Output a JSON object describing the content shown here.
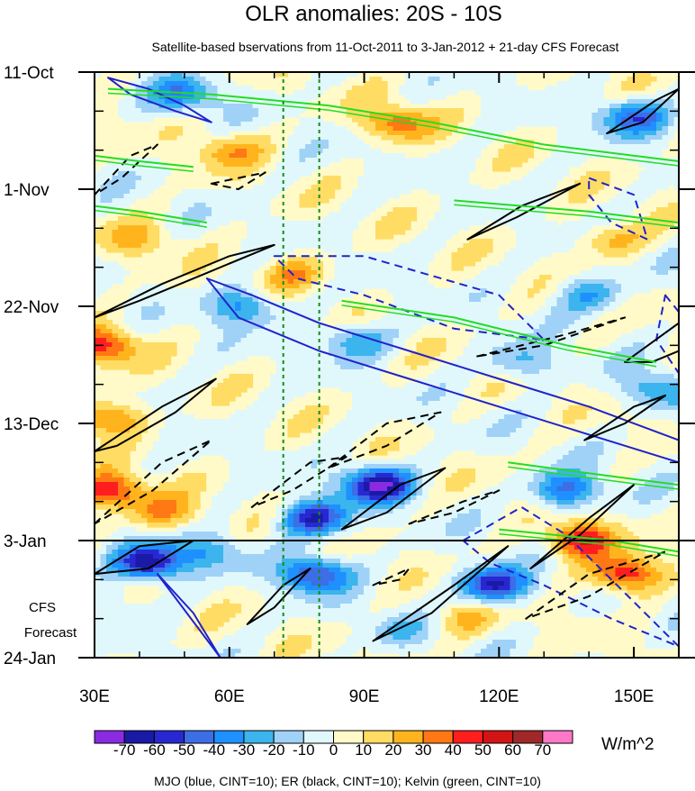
{
  "chart_data": {
    "type": "heatmap",
    "title": "OLR anomalies: 20S - 10S",
    "subtitle": "Satellite-based bservations from 11-Oct-2011 to 3-Jan-2012 + 21-day CFS Forecast",
    "x_axis": {
      "range": [
        30,
        160
      ],
      "ticks": [
        {
          "value": 30,
          "label": "30E"
        },
        {
          "value": 60,
          "label": "60E"
        },
        {
          "value": 90,
          "label": "90E"
        },
        {
          "value": 120,
          "label": "120E"
        },
        {
          "value": 150,
          "label": "150E"
        }
      ]
    },
    "y_axis": {
      "range_days": [
        0,
        105
      ],
      "direction": "time increases downward",
      "ticks": [
        {
          "day": 0,
          "label": "11-Oct"
        },
        {
          "day": 21,
          "label": "1-Nov"
        },
        {
          "day": 42,
          "label": "22-Nov"
        },
        {
          "day": 63,
          "label": "13-Dec"
        },
        {
          "day": 84,
          "label": "3-Jan"
        },
        {
          "day": 105,
          "label": "24-Jan"
        }
      ]
    },
    "forecast_divider_day": 84,
    "forecast_label": [
      "CFS",
      "Forecast"
    ],
    "reference_longitudes": [
      72,
      80
    ],
    "colorbar": {
      "unit": "W/m^2",
      "levels": [
        -70,
        -60,
        -50,
        -40,
        -30,
        -20,
        -10,
        0,
        10,
        20,
        30,
        40,
        50,
        60,
        70
      ],
      "level_labels": [
        "-70",
        "-60",
        "-50",
        "-40",
        "-30",
        "-20",
        "-10",
        "0",
        "10",
        "20",
        "30",
        "40",
        "50",
        "60",
        "70"
      ],
      "colors": [
        "#8a2be2",
        "#1a1aa6",
        "#2828d2",
        "#3c6ee6",
        "#1e90ff",
        "#3cb4ee",
        "#a0d2f8",
        "#e0f8fc",
        "#fffac8",
        "#ffdc64",
        "#ffb41e",
        "#ff7814",
        "#ff1e1e",
        "#d21414",
        "#a02828",
        "#ff78c8"
      ]
    },
    "contour_legend": "MJO (blue, CINT=10); ER (black, CINT=10); Kelvin (green, CINT=10)",
    "field_features": [
      {
        "day": 9,
        "lon": 97,
        "value": 35
      },
      {
        "day": 14,
        "lon": 60,
        "value": 25
      },
      {
        "day": 30,
        "lon": 40,
        "value": 20
      },
      {
        "day": 36,
        "lon": 75,
        "value": 25
      },
      {
        "day": 30,
        "lon": 145,
        "value": 25
      },
      {
        "day": 4,
        "lon": 50,
        "value": -35
      },
      {
        "day": 8,
        "lon": 150,
        "value": -45
      },
      {
        "day": 40,
        "lon": 140,
        "value": -30
      },
      {
        "day": 42,
        "lon": 63,
        "value": -35
      },
      {
        "day": 48,
        "lon": 88,
        "value": -30
      },
      {
        "day": 52,
        "lon": 125,
        "value": -25
      },
      {
        "day": 57,
        "lon": 155,
        "value": -30
      },
      {
        "day": 49,
        "lon": 32,
        "value": 45
      },
      {
        "day": 62,
        "lon": 33,
        "value": 40
      },
      {
        "day": 75,
        "lon": 33,
        "value": 50
      },
      {
        "day": 79,
        "lon": 45,
        "value": 30
      },
      {
        "day": 74,
        "lon": 93,
        "value": -70
      },
      {
        "day": 80,
        "lon": 79,
        "value": -60
      },
      {
        "day": 75,
        "lon": 135,
        "value": -45
      },
      {
        "day": 86,
        "lon": 55,
        "value": -25
      },
      {
        "day": 88,
        "lon": 42,
        "value": -70
      },
      {
        "day": 90,
        "lon": 79,
        "value": -55
      },
      {
        "day": 92,
        "lon": 119,
        "value": -65
      },
      {
        "day": 90,
        "lon": 148,
        "value": 55
      },
      {
        "day": 84,
        "lon": 138,
        "value": 50
      },
      {
        "day": 98,
        "lon": 112,
        "value": 20
      },
      {
        "day": 100,
        "lon": 98,
        "value": -15
      },
      {
        "day": 95,
        "lon": 35,
        "value": -10
      }
    ],
    "mjo_contours": [
      {
        "sign": "pos",
        "path": [
          [
            33,
            1
          ],
          [
            42,
            3
          ],
          [
            50,
            6
          ],
          [
            56,
            9
          ],
          [
            48,
            7
          ],
          [
            38,
            4
          ]
        ]
      },
      {
        "sign": "pos",
        "path": [
          [
            55,
            37
          ],
          [
            65,
            40
          ],
          [
            80,
            45
          ],
          [
            100,
            50
          ],
          [
            120,
            55
          ],
          [
            140,
            60
          ],
          [
            160,
            66
          ],
          [
            160,
            70
          ],
          [
            140,
            65
          ],
          [
            120,
            60
          ],
          [
            100,
            55
          ],
          [
            80,
            50
          ],
          [
            62,
            44
          ]
        ]
      },
      {
        "sign": "pos",
        "path": [
          [
            44,
            90
          ],
          [
            52,
            97
          ],
          [
            58,
            105
          ]
        ]
      },
      {
        "sign": "neg",
        "path": [
          [
            70,
            33
          ],
          [
            90,
            33
          ],
          [
            120,
            40
          ],
          [
            130,
            48
          ],
          [
            110,
            46
          ],
          [
            90,
            40
          ],
          [
            75,
            37
          ]
        ]
      },
      {
        "sign": "neg",
        "path": [
          [
            140,
            19
          ],
          [
            150,
            22
          ],
          [
            153,
            30
          ],
          [
            145,
            27
          ],
          [
            140,
            22
          ]
        ]
      },
      {
        "sign": "neg",
        "path": [
          [
            157,
            40
          ],
          [
            160,
            43
          ],
          [
            160,
            54
          ],
          [
            155,
            48
          ]
        ]
      },
      {
        "sign": "neg",
        "path": [
          [
            112,
            84
          ],
          [
            125,
            78
          ],
          [
            135,
            83
          ],
          [
            150,
            95
          ],
          [
            160,
            103
          ],
          [
            145,
            98
          ],
          [
            130,
            92
          ],
          [
            118,
            88
          ]
        ]
      }
    ],
    "er_contours": [
      {
        "sign": "pos",
        "path": [
          [
            30,
            44
          ],
          [
            45,
            38
          ],
          [
            60,
            33
          ],
          [
            70,
            31
          ],
          [
            55,
            36
          ],
          [
            40,
            41
          ]
        ]
      },
      {
        "sign": "pos",
        "path": [
          [
            30,
            68
          ],
          [
            45,
            60
          ],
          [
            57,
            55
          ],
          [
            48,
            61
          ],
          [
            35,
            67
          ]
        ]
      },
      {
        "sign": "pos",
        "path": [
          [
            30,
            90
          ],
          [
            40,
            85
          ],
          [
            52,
            84
          ],
          [
            42,
            89
          ]
        ]
      },
      {
        "sign": "pos",
        "path": [
          [
            64,
            99
          ],
          [
            72,
            92
          ],
          [
            78,
            89
          ],
          [
            70,
            96
          ]
        ]
      },
      {
        "sign": "pos",
        "path": [
          [
            85,
            82
          ],
          [
            98,
            74
          ],
          [
            108,
            71
          ],
          [
            95,
            79
          ]
        ]
      },
      {
        "sign": "pos",
        "path": [
          [
            92,
            102
          ],
          [
            110,
            92
          ],
          [
            122,
            85
          ],
          [
            105,
            97
          ]
        ]
      },
      {
        "sign": "pos",
        "path": [
          [
            127,
            89
          ],
          [
            140,
            80
          ],
          [
            150,
            74
          ],
          [
            138,
            83
          ]
        ]
      },
      {
        "sign": "pos",
        "path": [
          [
            139,
            66
          ],
          [
            150,
            60
          ],
          [
            157,
            58
          ],
          [
            148,
            63
          ]
        ]
      },
      {
        "sign": "pos",
        "path": [
          [
            113,
            30
          ],
          [
            125,
            24
          ],
          [
            138,
            20
          ],
          [
            124,
            26
          ]
        ]
      },
      {
        "sign": "pos",
        "path": [
          [
            144,
            11
          ],
          [
            155,
            5
          ],
          [
            160,
            3
          ],
          [
            152,
            9
          ]
        ]
      },
      {
        "sign": "pos",
        "path": [
          [
            148,
            52
          ],
          [
            160,
            45
          ],
          [
            160,
            50
          ],
          [
            154,
            52
          ]
        ]
      },
      {
        "sign": "neg",
        "path": [
          [
            30,
            81
          ],
          [
            45,
            70
          ],
          [
            56,
            66
          ],
          [
            43,
            75
          ]
        ]
      },
      {
        "sign": "neg",
        "path": [
          [
            30,
            22
          ],
          [
            38,
            15
          ],
          [
            44,
            13
          ],
          [
            36,
            19
          ]
        ]
      },
      {
        "sign": "neg",
        "path": [
          [
            56,
            20
          ],
          [
            62,
            19
          ],
          [
            68,
            18
          ],
          [
            62,
            21
          ]
        ]
      },
      {
        "sign": "neg",
        "path": [
          [
            65,
            78
          ],
          [
            78,
            70
          ],
          [
            86,
            69
          ],
          [
            74,
            75
          ]
        ]
      },
      {
        "sign": "neg",
        "path": [
          [
            82,
            71
          ],
          [
            95,
            63
          ],
          [
            107,
            61
          ],
          [
            95,
            67
          ]
        ]
      },
      {
        "sign": "neg",
        "path": [
          [
            100,
            81
          ],
          [
            112,
            77
          ],
          [
            120,
            75
          ],
          [
            110,
            79
          ]
        ]
      },
      {
        "sign": "neg",
        "path": [
          [
            115,
            51
          ],
          [
            135,
            47
          ],
          [
            148,
            44
          ],
          [
            130,
            49
          ]
        ]
      },
      {
        "sign": "neg",
        "path": [
          [
            92,
            92
          ],
          [
            100,
            89
          ],
          [
            98,
            91
          ]
        ]
      },
      {
        "sign": "neg",
        "path": [
          [
            126,
            98
          ],
          [
            140,
            90
          ],
          [
            157,
            86
          ],
          [
            140,
            94
          ]
        ]
      }
    ],
    "kelvin_contours": [
      {
        "path": [
          [
            33,
            3
          ],
          [
            56,
            4
          ],
          [
            82,
            6
          ],
          [
            105,
            9
          ],
          [
            130,
            13
          ],
          [
            160,
            16
          ]
        ]
      },
      {
        "path": [
          [
            30,
            15
          ],
          [
            40,
            16
          ],
          [
            52,
            17
          ]
        ]
      },
      {
        "path": [
          [
            30,
            24
          ],
          [
            40,
            25
          ],
          [
            55,
            27
          ]
        ]
      },
      {
        "path": [
          [
            110,
            23
          ],
          [
            140,
            25
          ],
          [
            160,
            27
          ]
        ]
      },
      {
        "path": [
          [
            85,
            41
          ],
          [
            110,
            44
          ],
          [
            135,
            49
          ],
          [
            155,
            52
          ]
        ]
      },
      {
        "path": [
          [
            122,
            70
          ],
          [
            150,
            73
          ],
          [
            160,
            74
          ]
        ]
      },
      {
        "path": [
          [
            120,
            82
          ],
          [
            145,
            84
          ],
          [
            160,
            86
          ]
        ]
      }
    ]
  }
}
